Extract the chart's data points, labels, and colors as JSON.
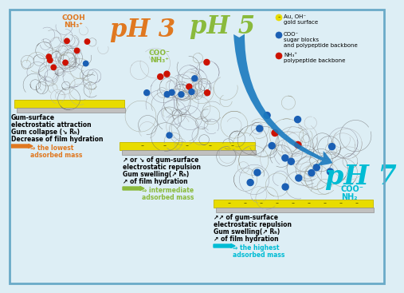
{
  "bg_color": "#ddeef5",
  "border_color": "#6aaac8",
  "ph3_label": "pH 3",
  "ph5_label": "pH 5",
  "ph7_label": "pH 7",
  "ph3_color": "#e07820",
  "ph5_color": "#8aba3c",
  "ph7_color": "#00bcd4",
  "cooh_nh3_text1": "COOH",
  "cooh_nh3_text2": "NH₃⁺",
  "coo_nh3_text1": "COO⁻",
  "coo_nh3_text2": "NH₃⁺",
  "coo_nh2_text1": "COO⁻",
  "coo_nh2_text2": "NH₂",
  "cooh_color": "#e07820",
  "coo5_color": "#8aba3c",
  "coo7_color": "#00bcd4",
  "gold_color": "#e8dc00",
  "gold_edge": "#c8bc00",
  "silver_color": "#c0c0c0",
  "legend_au_color": "#e8dc00",
  "legend_coo_color": "#1a5fb4",
  "legend_nh3_color": "#cc1100",
  "text_ph3_line1": "Gum-surface",
  "text_ph3_line2": "electrostatic attraction",
  "text_ph3_line3": "Gum collapse (↘ Rₕ)",
  "text_ph3_line4": "Decrease of film hydration",
  "text_ph3_highlight": "⇒ the lowest",
  "text_ph3_highlight2": "adsorbed mass",
  "text_ph3_highlight_color": "#e07820",
  "text_ph5_line1": "↗ or ↘ of gum-surface",
  "text_ph5_line2": "electrostatic repulsion",
  "text_ph5_line3": "Gum swelling(↗ Rₕ)",
  "text_ph5_line4": "↗ of film hydration",
  "text_ph5_highlight": "⇒ intermediate",
  "text_ph5_highlight2": "adsorbed mass",
  "text_ph5_highlight_color": "#8aba3c",
  "text_ph7_line1": "↗↗ of gum-surface",
  "text_ph7_line2": "electrostatic repulsion",
  "text_ph7_line3": "Gum swelling(↗ Rₕ)",
  "text_ph7_line4": "↗ of film hydration",
  "text_ph7_highlight": "⇒ the highest",
  "text_ph7_highlight2": "adsorbed mass",
  "text_ph7_highlight_color": "#00bcd4",
  "legend_au_text1": "Au, OH⁻",
  "legend_au_text2": "gold surface",
  "legend_coo_text1": "COO⁻",
  "legend_coo_text2": "sugar blocks",
  "legend_coo_text3": "and polypeptide backbone",
  "legend_nh3_text1": "NH₃⁺",
  "legend_nh3_text2": "polypeptide backbone",
  "arrow_color": "#1a7abf"
}
